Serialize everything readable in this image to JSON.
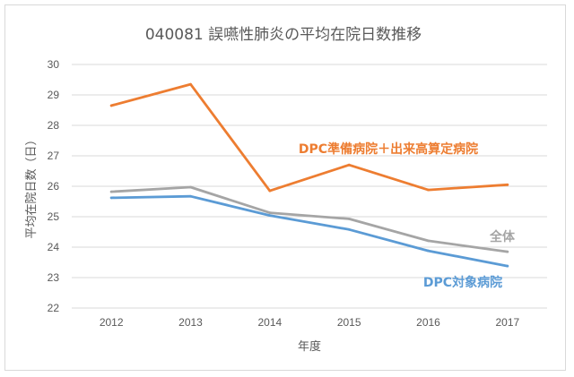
{
  "chart_data": {
    "type": "line",
    "title": "040081 誤嚥性肺炎の平均在院日数推移",
    "xlabel": "年度",
    "ylabel": "平均在院日数（日）",
    "ylim": [
      22,
      30
    ],
    "yticks": [
      22,
      23,
      24,
      25,
      26,
      27,
      28,
      29,
      30
    ],
    "categories": [
      "2012",
      "2013",
      "2014",
      "2015",
      "2016",
      "2017"
    ],
    "grid": true,
    "series": [
      {
        "name": "DPC準備病院＋出来高算定病院",
        "color": "#ED7D31",
        "values": [
          28.65,
          29.35,
          25.85,
          26.7,
          25.88,
          26.05
        ]
      },
      {
        "name": "全体",
        "color": "#A5A5A5",
        "values": [
          25.82,
          25.97,
          25.13,
          24.93,
          24.21,
          23.85
        ]
      },
      {
        "name": "DPC対象病院",
        "color": "#5B9BD5",
        "values": [
          25.62,
          25.67,
          25.04,
          24.58,
          23.88,
          23.38
        ]
      }
    ]
  }
}
